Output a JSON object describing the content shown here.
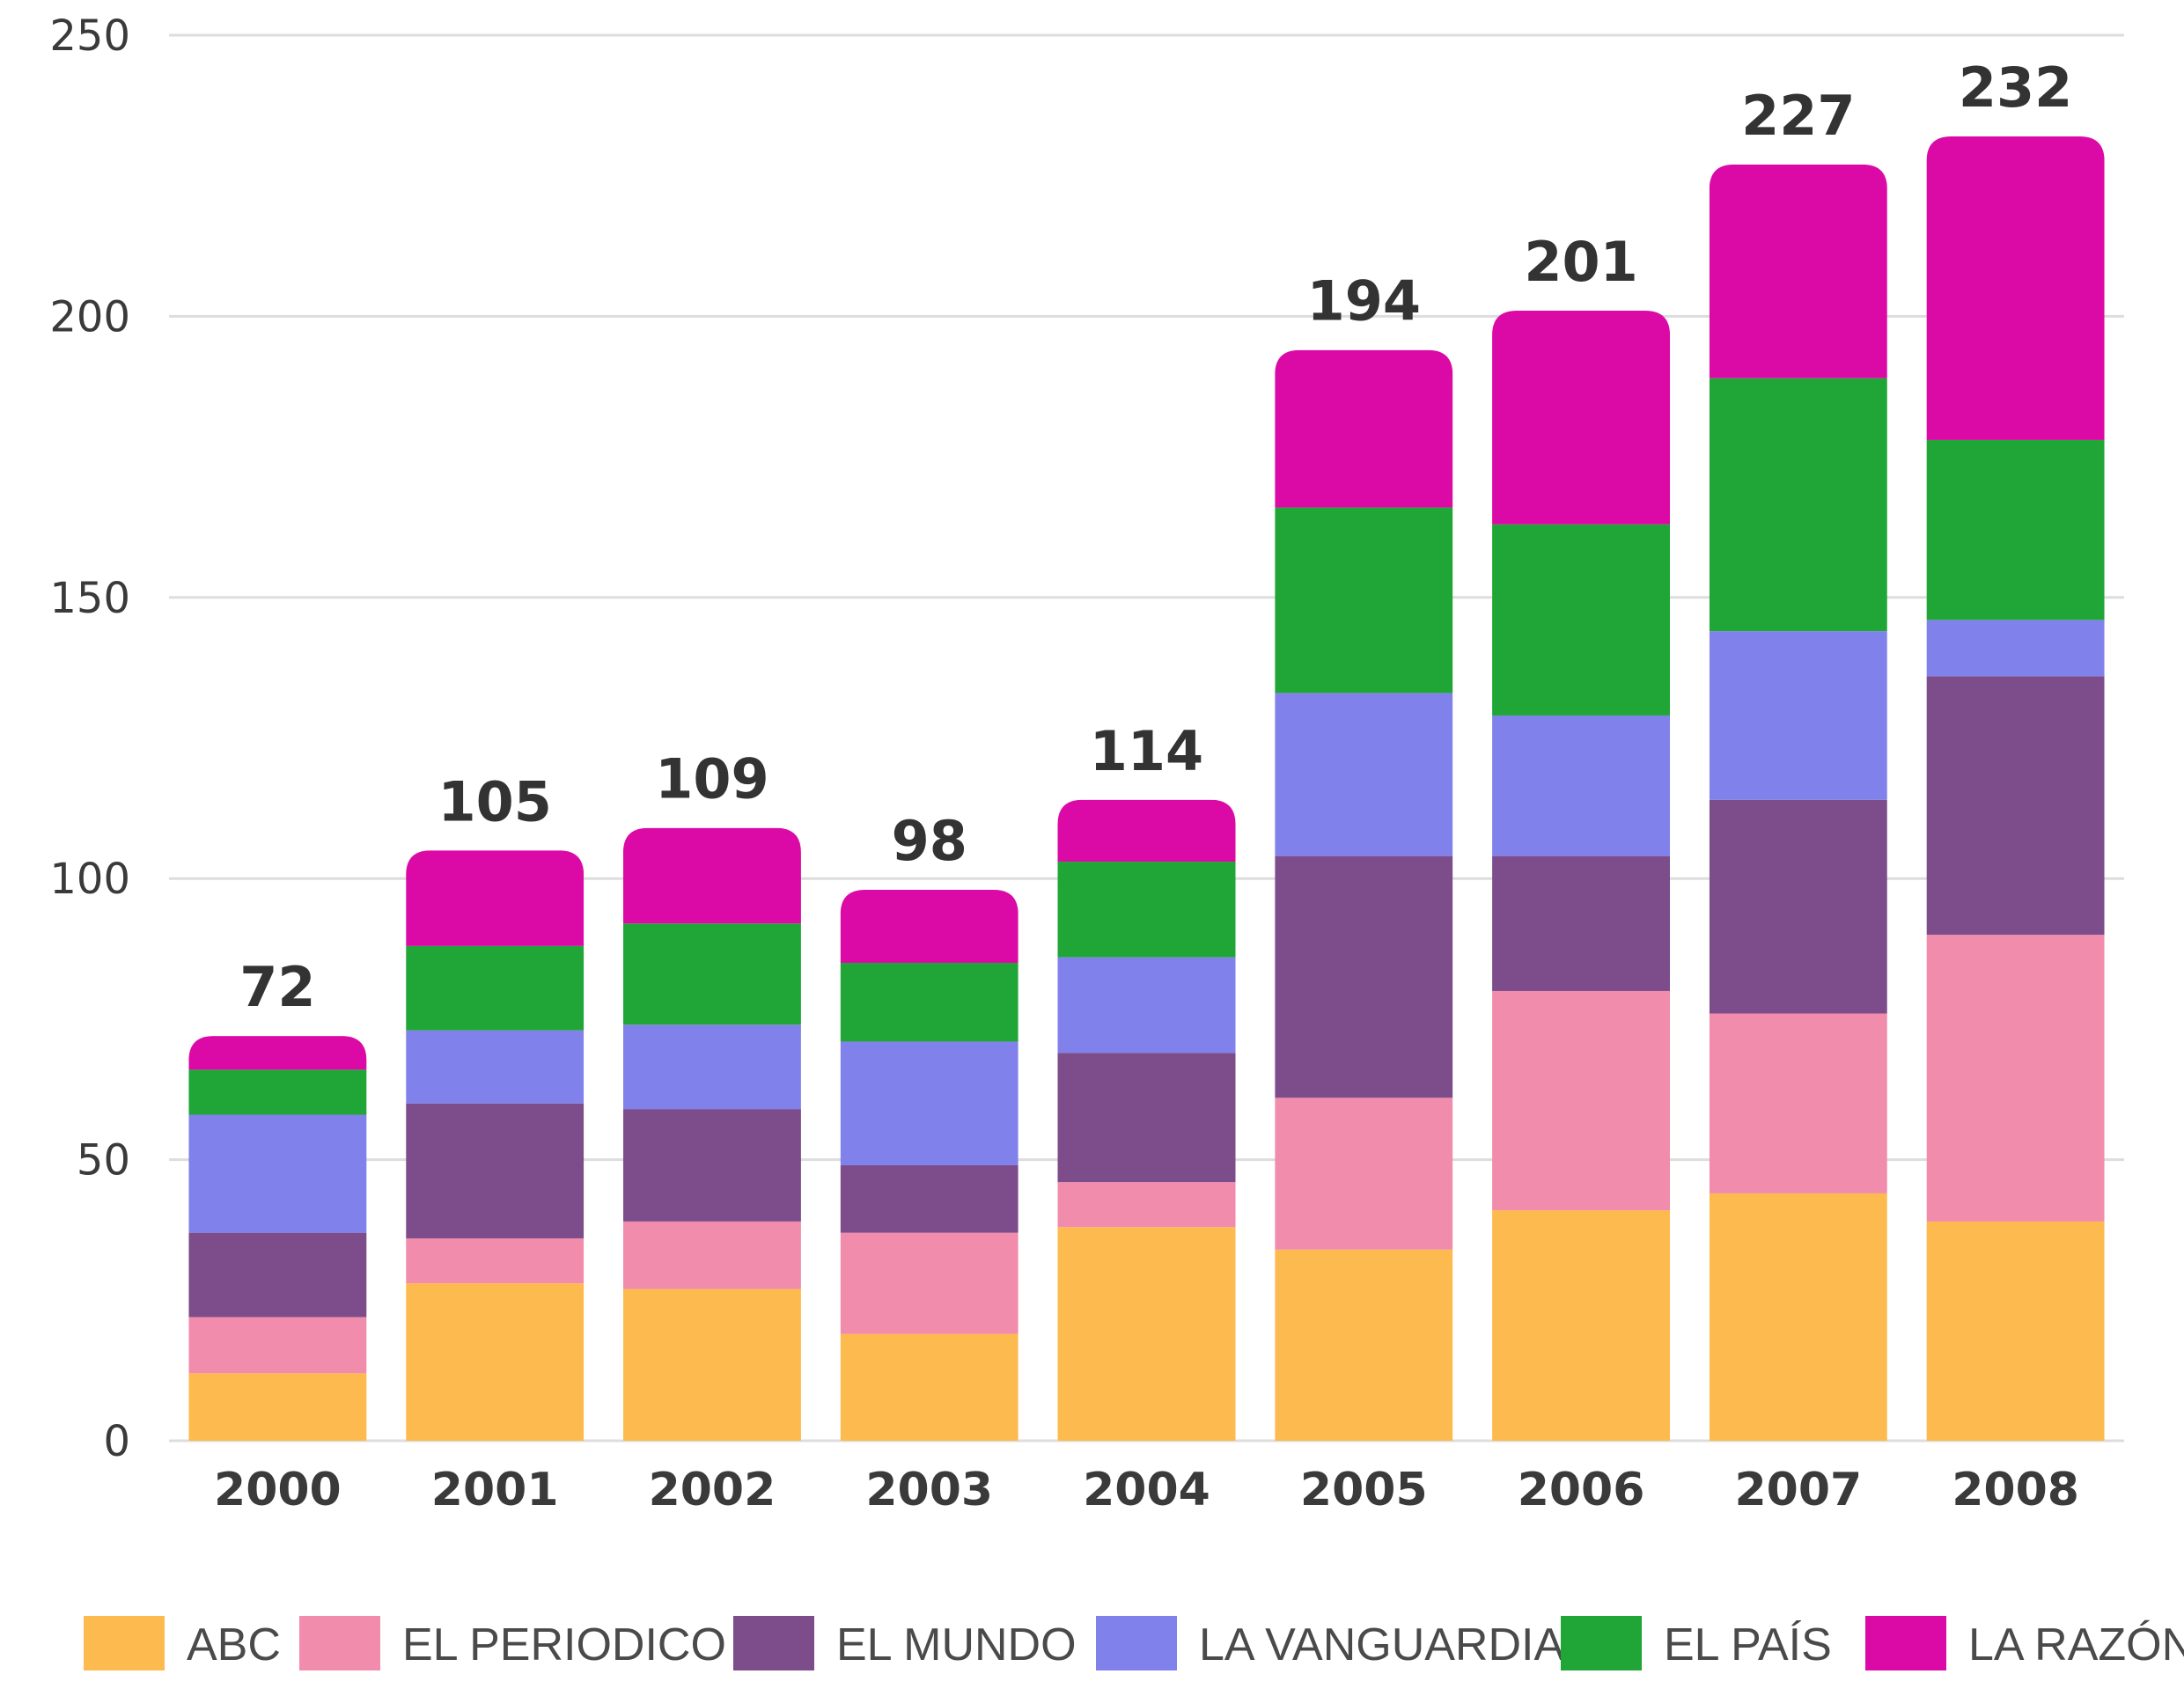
{
  "chart_data": {
    "type": "bar",
    "stacked": true,
    "title": "",
    "xlabel": "",
    "ylabel": "",
    "ylim": [
      0,
      250
    ],
    "yticks": [
      0,
      50,
      100,
      150,
      200,
      250
    ],
    "grid": true,
    "legend_position": "bottom",
    "categories": [
      "2000",
      "2001",
      "2002",
      "2003",
      "2004",
      "2005",
      "2006",
      "2007",
      "2008"
    ],
    "totals": [
      72,
      105,
      109,
      98,
      114,
      194,
      201,
      227,
      232
    ],
    "series": [
      {
        "name": "ABC",
        "color": "#FDBA4F",
        "values": [
          12,
          28,
          27,
          19,
          38,
          34,
          41,
          44,
          39
        ]
      },
      {
        "name": "EL PERIODICO",
        "color": "#F18CAC",
        "values": [
          10,
          8,
          12,
          18,
          8,
          27,
          39,
          32,
          51
        ]
      },
      {
        "name": "EL MUNDO",
        "color": "#7C4D8A",
        "values": [
          15,
          24,
          20,
          12,
          23,
          43,
          24,
          38,
          46
        ]
      },
      {
        "name": "LA VANGUARDIA",
        "color": "#8181EC",
        "values": [
          21,
          13,
          15,
          22,
          17,
          29,
          25,
          30,
          10
        ]
      },
      {
        "name": "EL PAÍS",
        "color": "#20A637",
        "values": [
          8,
          15,
          18,
          14,
          17,
          33,
          34,
          45,
          32
        ]
      },
      {
        "name": "LA RAZÓN",
        "color": "#DB0AA6",
        "values": [
          6,
          17,
          17,
          13,
          11,
          28,
          38,
          38,
          54
        ]
      }
    ]
  }
}
